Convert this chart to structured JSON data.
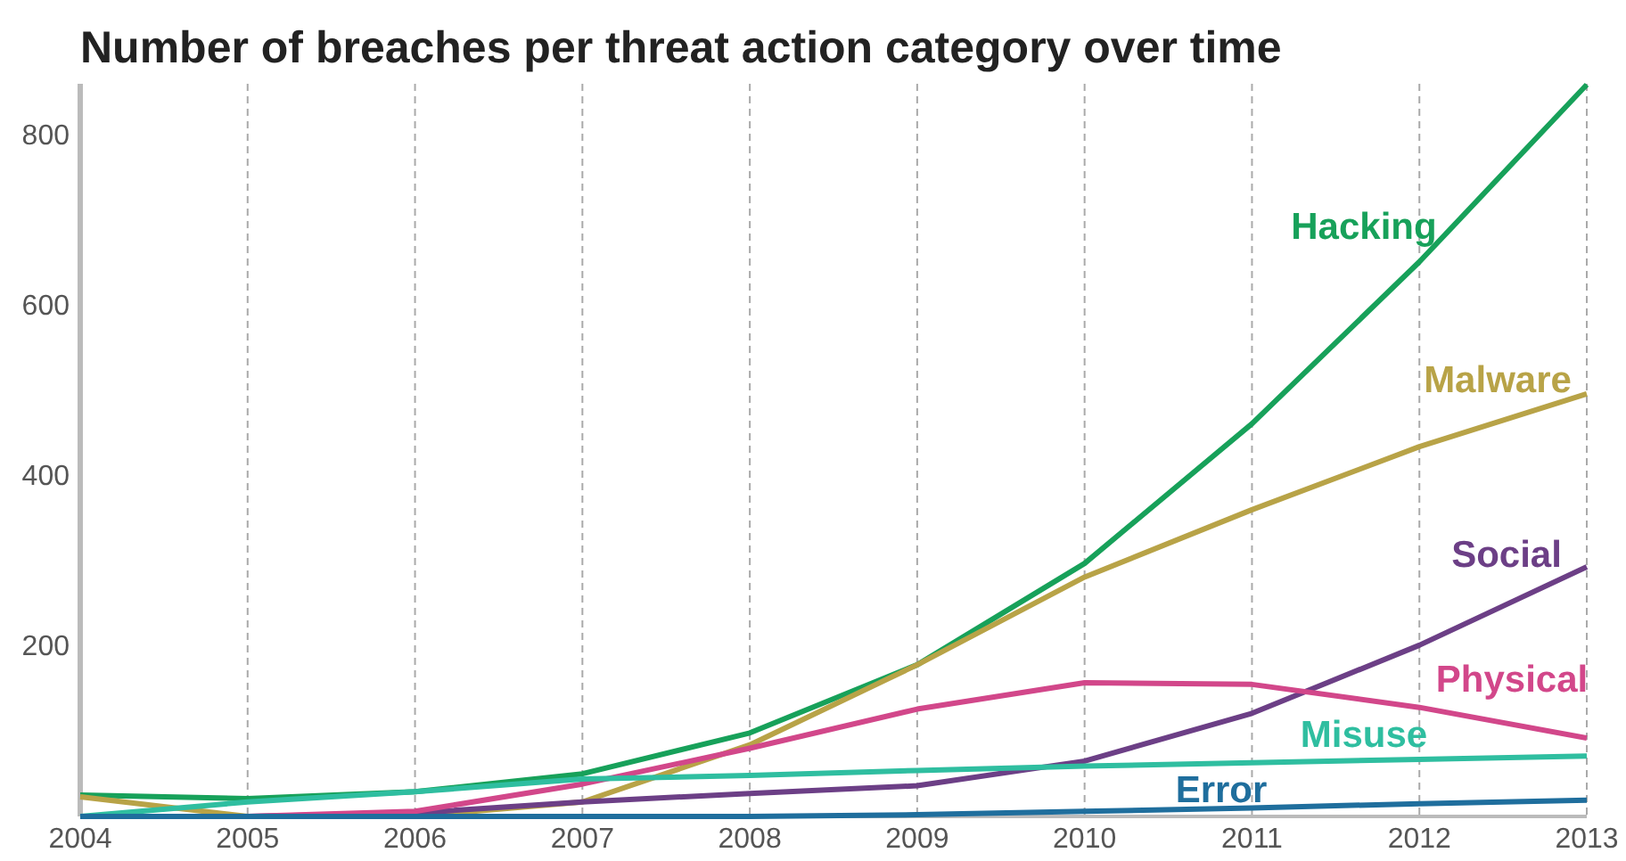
{
  "chart_data": {
    "type": "line",
    "title": "Number of breaches per threat action category over time",
    "x": [
      2004,
      2005,
      2006,
      2007,
      2008,
      2009,
      2010,
      2011,
      2012,
      2013
    ],
    "xlim": [
      2004,
      2013
    ],
    "xticks": [
      2004,
      2005,
      2006,
      2007,
      2008,
      2009,
      2010,
      2011,
      2012,
      2013
    ],
    "ylim": [
      0,
      860
    ],
    "yticks": [
      200,
      400,
      600,
      800
    ],
    "grid": "x",
    "marker": "none",
    "line_style": "solid",
    "series": [
      {
        "name": "Hacking",
        "color": "#17a15a",
        "values": [
          25,
          21,
          29,
          50,
          98,
          178,
          297,
          461,
          651,
          859
        ]
      },
      {
        "name": "Malware",
        "color": "#b8a347",
        "values": [
          23,
          0,
          0,
          17,
          84,
          178,
          281,
          360,
          434,
          496
        ]
      },
      {
        "name": "Social",
        "color": "#6c3f86",
        "values": [
          0,
          0,
          4,
          17,
          27,
          36,
          65,
          121,
          201,
          293
        ]
      },
      {
        "name": "Physical",
        "color": "#d2478a",
        "values": [
          0,
          0,
          6,
          38,
          80,
          126,
          157,
          155,
          128,
          92
        ]
      },
      {
        "name": "Misuse",
        "color": "#2fbea0",
        "values": [
          0,
          17,
          29,
          44,
          48,
          54,
          59,
          63,
          67,
          71
        ]
      },
      {
        "name": "Error",
        "color": "#1f6e9d",
        "values": [
          0,
          0,
          0,
          0,
          0,
          2,
          6,
          10,
          15,
          19
        ]
      }
    ]
  }
}
